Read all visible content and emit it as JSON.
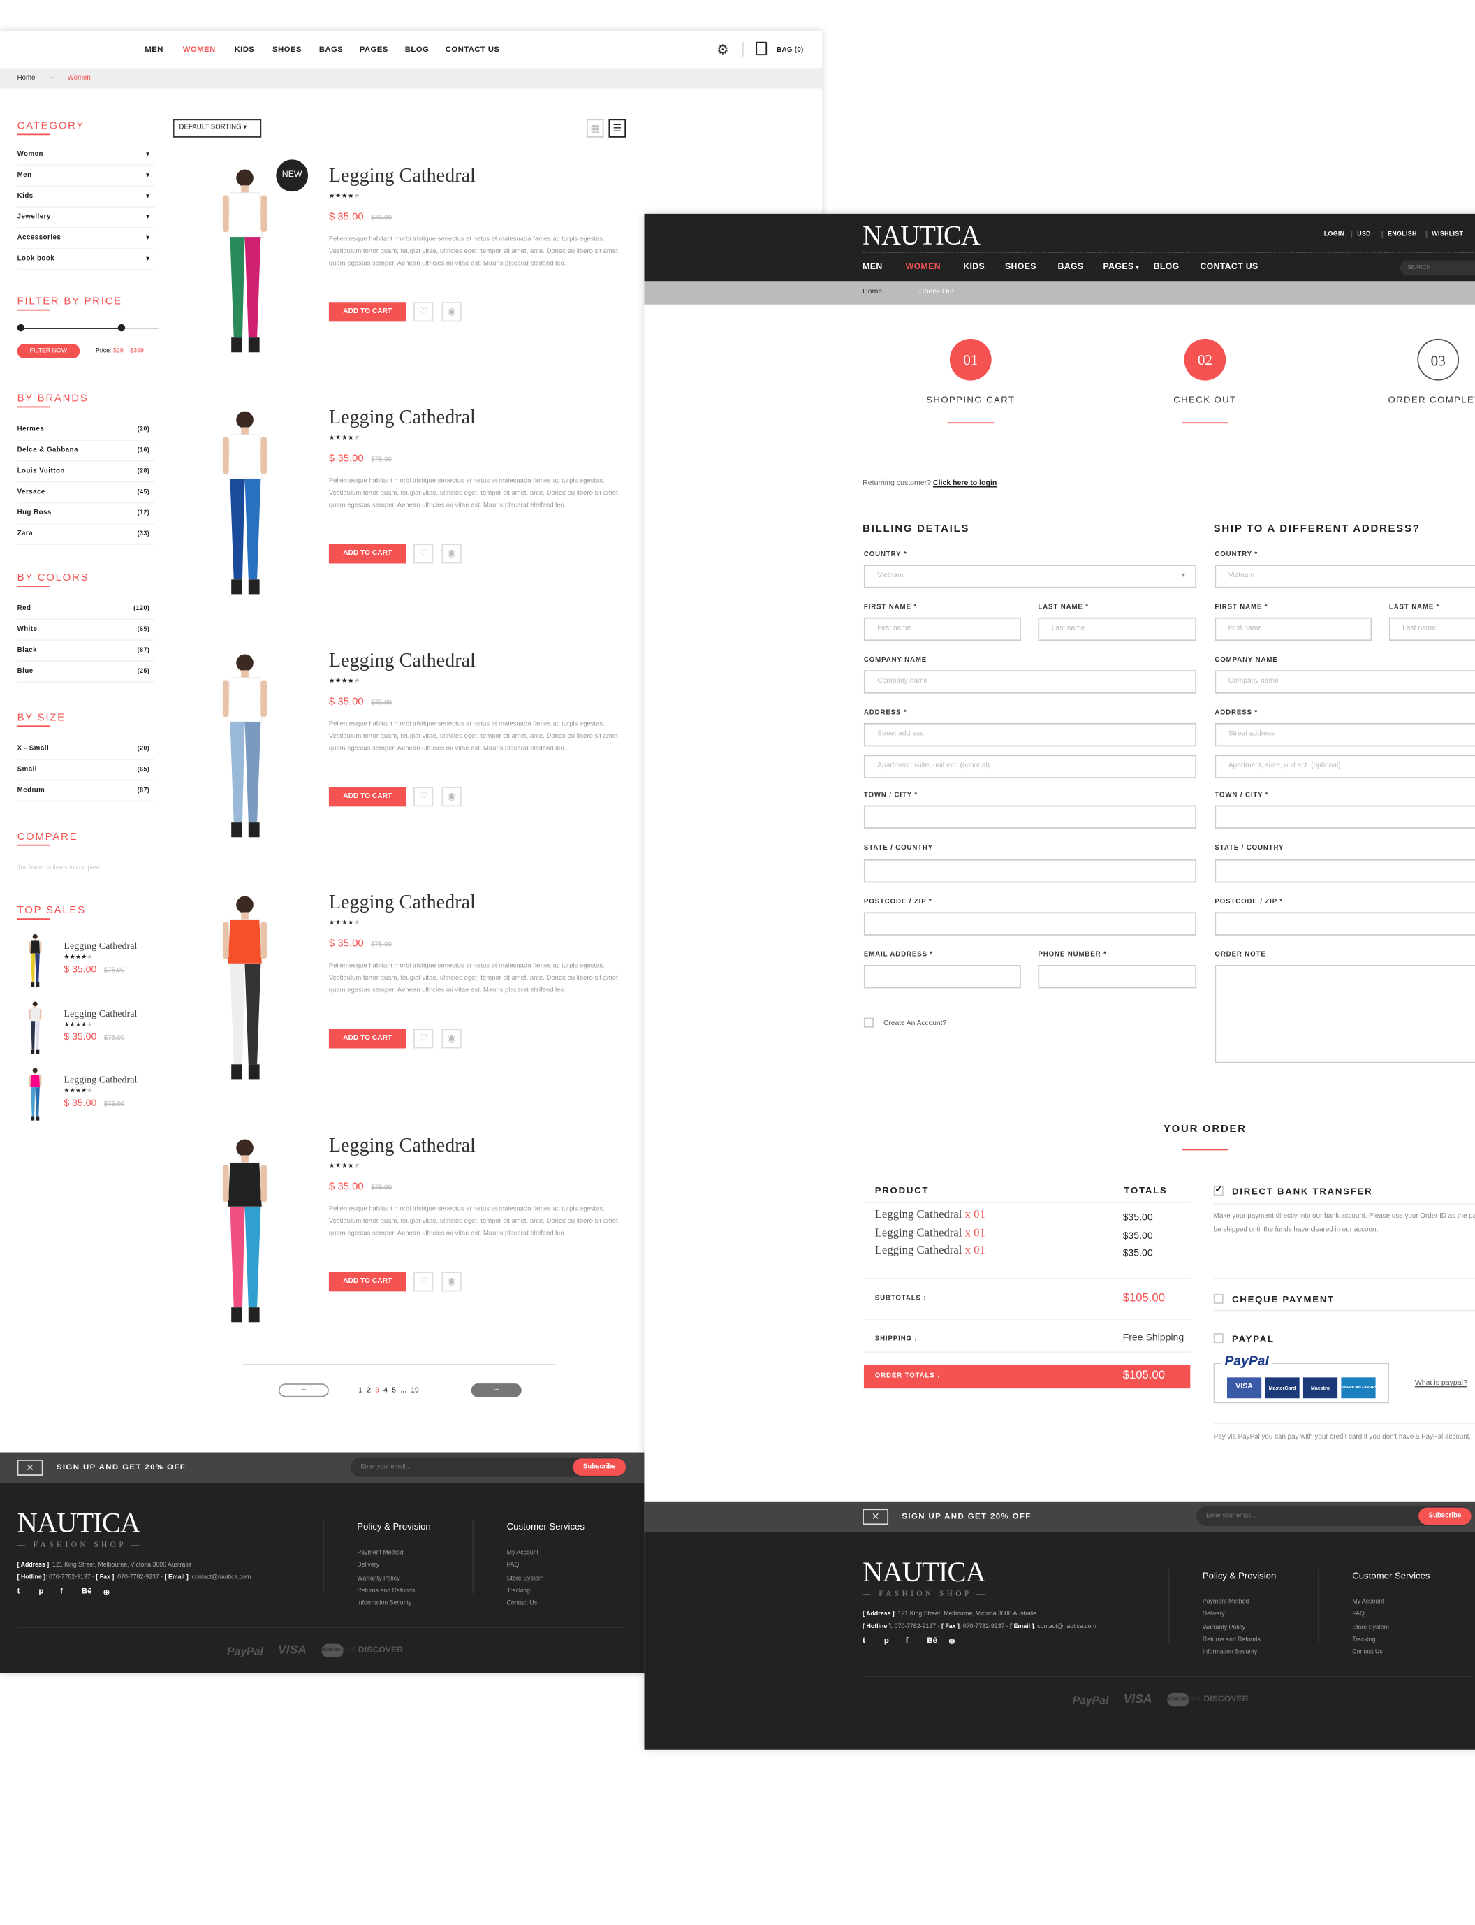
{
  "colors": {
    "accent": "#f55252",
    "dark": "#222222",
    "signup_bar": "#444444"
  },
  "shop_page": {
    "nav": [
      "MEN",
      "WOMEN",
      "KIDS",
      "SHOES",
      "BAGS",
      "PAGES",
      "BLOG",
      "CONTACT US"
    ],
    "active_nav": "WOMEN",
    "bag_label": "BAG (0)",
    "breadcrumb": {
      "home": "Home",
      "current": "Women"
    },
    "sorting": "DEFAULT SORTING",
    "category": {
      "title": "CATEGORY",
      "items": [
        "Women",
        "Men",
        "Kids",
        "Jewellery",
        "Accessories",
        "Look book"
      ]
    },
    "price_filter": {
      "title": "FILTER BY PRICE",
      "button": "FILTER NOW",
      "label": "Price:",
      "range": "$29 – $399",
      "min": 29,
      "max": 399
    },
    "brands": {
      "title": "BY BRANDS",
      "items": [
        {
          "name": "Hermes",
          "count": "(20)"
        },
        {
          "name": "Delce & Gabbana",
          "count": "(16)"
        },
        {
          "name": "Louis Vuitton",
          "count": "(28)"
        },
        {
          "name": "Versace",
          "count": "(45)"
        },
        {
          "name": "Hug Boss",
          "count": "(12)"
        },
        {
          "name": "Zara",
          "count": "(33)"
        }
      ]
    },
    "colors_filter": {
      "title": "BY COLORS",
      "items": [
        {
          "name": "Red",
          "count": "(120)"
        },
        {
          "name": "White",
          "count": "(65)"
        },
        {
          "name": "Black",
          "count": "(87)"
        },
        {
          "name": "Blue",
          "count": "(25)"
        }
      ]
    },
    "sizes": {
      "title": "BY SIZE",
      "items": [
        {
          "name": "X - Small",
          "count": "(20)"
        },
        {
          "name": "Small",
          "count": "(65)"
        },
        {
          "name": "Medium",
          "count": "(87)"
        }
      ]
    },
    "compare": {
      "title": "COMPARE",
      "text": "You have no items to compare!"
    },
    "top_sales": {
      "title": "TOP SALES",
      "items": [
        {
          "name": "Legging Cathedral",
          "rating": 4,
          "price": "$ 35.00",
          "old_price": "$75.00"
        },
        {
          "name": "Legging Cathedral",
          "rating": 4,
          "price": "$ 35.00",
          "old_price": "$75.00"
        },
        {
          "name": "Legging Cathedral",
          "rating": 4,
          "price": "$ 35.00",
          "old_price": "$75.00"
        }
      ]
    },
    "products": [
      {
        "name": "Legging Cathedral",
        "badge": "NEW",
        "rating": 4,
        "price": "$ 35.00",
        "old_price": "$75.00",
        "desc": "Pellentesque habitant morbi tristique senectus et netus et malesuada fames ac turpis egestas. Vestibulum tortor quam, feugiat vitae, ultricies eget, tempor sit amet, ante. Donec eu libero sit amet quam egestas semper. Aenean ultricies mi vitae est. Mauris placerat eleifend leo.",
        "add_to_cart": "ADD TO CART"
      },
      {
        "name": "Legging Cathedral",
        "rating": 4,
        "price": "$ 35.00",
        "old_price": "$75.00",
        "desc": "Pellentesque habitant morbi tristique senectus et netus et malesuada fames ac turpis egestas. Vestibulum tortor quam, feugiat vitae, ultricies eget, tempor sit amet, ante. Donec eu libero sit amet quam egestas semper. Aenean ultricies mi vitae est. Mauris placerat eleifend leo.",
        "add_to_cart": "ADD TO CART"
      },
      {
        "name": "Legging Cathedral",
        "rating": 4,
        "price": "$ 35.00",
        "old_price": "$75.00",
        "desc": "Pellentesque habitant morbi tristique senectus et netus et malesuada fames ac turpis egestas. Vestibulum tortor quam, feugiat vitae, ultricies eget, tempor sit amet, ante. Donec eu libero sit amet quam egestas semper. Aenean ultricies mi vitae est. Mauris placerat eleifend leo.",
        "add_to_cart": "ADD TO CART"
      },
      {
        "name": "Legging Cathedral",
        "rating": 4,
        "price": "$ 35.00",
        "old_price": "$75.00",
        "desc": "Pellentesque habitant morbi tristique senectus et netus et malesuada fames ac turpis egestas. Vestibulum tortor quam, feugiat vitae, ultricies eget, tempor sit amet, ante. Donec eu libero sit amet quam egestas semper. Aenean ultricies mi vitae est. Mauris placerat eleifend leo.",
        "add_to_cart": "ADD TO CART"
      },
      {
        "name": "Legging Cathedral",
        "rating": 4,
        "price": "$ 35.00",
        "old_price": "$75.00",
        "desc": "Pellentesque habitant morbi tristique senectus et netus et malesuada fames ac turpis egestas. Vestibulum tortor quam, feugiat vitae, ultricies eget, tempor sit amet, ante. Donec eu libero sit amet quam egestas semper. Aenean ultricies mi vitae est. Mauris placerat eleifend leo.",
        "add_to_cart": "ADD TO CART"
      }
    ],
    "pagination": {
      "pages": [
        "1",
        "2",
        "3",
        "4",
        "5",
        "...",
        "19"
      ],
      "current": "3",
      "prev": "←",
      "next": "→"
    }
  },
  "checkout_page": {
    "logo": "NAUTICA",
    "top_links": [
      "LOGIN",
      "USD",
      "ENGLISH",
      "WISHLIST"
    ],
    "nav": [
      "MEN",
      "WOMEN",
      "KIDS",
      "SHOES",
      "BAGS",
      "PAGES",
      "BLOG",
      "CONTACT US"
    ],
    "active_nav": "WOMEN",
    "search_placeholder": "SEARCH",
    "breadcrumb": {
      "home": "Home",
      "current": "Check Out"
    },
    "steps": [
      {
        "num": "01",
        "label": "SHOPPING CART",
        "done": true
      },
      {
        "num": "02",
        "label": "CHECK OUT",
        "done": true
      },
      {
        "num": "03",
        "label": "ORDER COMPLETE",
        "done": false
      }
    ],
    "returning": {
      "text": "Returning customer?",
      "link": "Click here to login"
    },
    "billing": {
      "title": "BILLING DETAILS",
      "country_label": "COUNTRY *",
      "country_value": "Vietnam",
      "first_name_label": "FIRST NAME *",
      "first_name_ph": "First name",
      "last_name_label": "LAST NAME *",
      "last_name_ph": "Last name",
      "company_label": "COMPANY NAME",
      "company_ph": "Company name",
      "address_label": "ADDRESS *",
      "street_ph": "Street address",
      "apt_ph": "Apartment, suite, unit ect. (optional)",
      "town_label": "TOWN / CITY *",
      "state_label": "STATE / COUNTRY",
      "postcode_label": "POSTCODE / ZIP *",
      "email_label": "EMAIL ADDRESS *",
      "phone_label": "PHONE NUMBER *",
      "create_account": "Create An Account?"
    },
    "shipping": {
      "title": "SHIP TO A DIFFERENT ADDRESS?",
      "country_label": "COUNTRY *",
      "country_value": "Vietnam",
      "first_name_label": "FIRST NAME *",
      "first_name_ph": "First name",
      "last_name_label": "LAST NAME *",
      "last_name_ph": "Last name",
      "company_label": "COMPANY NAME",
      "company_ph": "Company name",
      "address_label": "ADDRESS *",
      "street_ph": "Street address",
      "apt_ph": "Apartment, suite, unit ect. (optional)",
      "town_label": "TOWN / CITY *",
      "state_label": "STATE / COUNTRY",
      "postcode_label": "POSTCODE / ZIP *",
      "order_note_label": "ORDER NOTE"
    },
    "order": {
      "title": "YOUR ORDER",
      "product_header": "PRODUCT",
      "totals_header": "TOTALS",
      "items": [
        {
          "name": "Legging Cathedral",
          "qty": "x 01",
          "total": "$35.00"
        },
        {
          "name": "Legging Cathedral",
          "qty": "x 01",
          "total": "$35.00"
        },
        {
          "name": "Legging Cathedral",
          "qty": "x 01",
          "total": "$35.00"
        }
      ],
      "subtotals_label": "SUBTOTALS :",
      "subtotals": "$105.00",
      "shipping_label": "SHIPPING :",
      "shipping": "Free Shipping",
      "order_totals_label": "ORDER TOTALS :",
      "order_totals": "$105.00"
    },
    "payment": {
      "bank": {
        "label": "DIRECT BANK TRANSFER",
        "checked": true,
        "desc": "Make your payment directly into our bank account. Please use your Order ID as the payment reference. Your order won't be shipped until the funds have cleared in our account."
      },
      "cheque": {
        "label": "CHEQUE PAYMENT",
        "checked": false
      },
      "paypal": {
        "label": "PAYPAL",
        "checked": false,
        "logo": "PayPal",
        "cards": [
          "VISA",
          "MasterCard",
          "Maestro",
          "AMERICAN EXPRESS"
        ],
        "what_is": "What is paypal?",
        "desc": "Pay via PayPal you can pay with your credit card if you don't have a PayPal account."
      }
    }
  },
  "footer": {
    "signup": "SIGN UP AND GET 20% OFF",
    "email_placeholder": "Enter your email...",
    "subscribe": "Subscribe",
    "logo": "NAUTICA",
    "tagline": "— FASHION SHOP —",
    "address_label": "[ Address ]",
    "address": ": 121 King Street, Melbourne, Victoria 3000 Australia",
    "hotline_label": "[ Hotline ]",
    "hotline": ": 070-7782-9137",
    "fax_label": "[ Fax ]",
    "fax": ": 070-7782-9237",
    "email_label": "[ Email ]",
    "email": ": contact@nautica.com",
    "social": [
      "twitter-icon",
      "pinterest-icon",
      "facebook-icon",
      "behance-icon",
      "dribbble-icon"
    ],
    "policy": {
      "title": "Policy & Provision",
      "items": [
        "Payment Method",
        "Delivery",
        "Warranty Policy",
        "Returns and Refunds",
        "Information Security"
      ]
    },
    "services": {
      "title": "Customer Services",
      "items": [
        "My Account",
        "FAQ",
        "Store System",
        "Tracking",
        "Contact Us"
      ]
    },
    "payments": [
      "PayPal",
      "VISA",
      "MasterCard",
      "DISCOVER"
    ]
  }
}
